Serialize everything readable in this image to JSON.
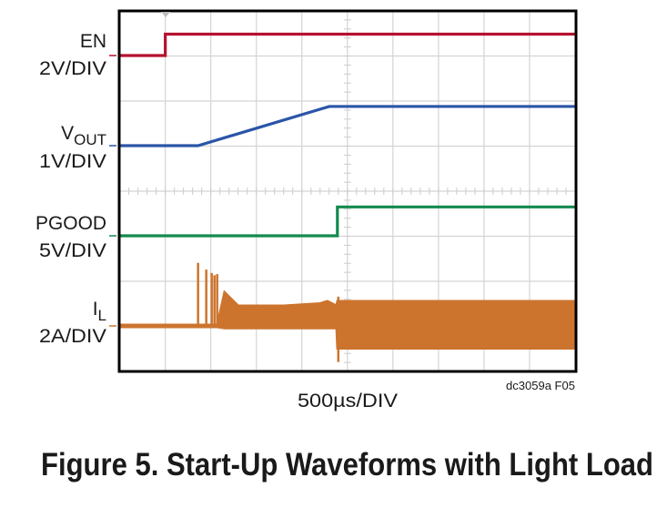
{
  "chart_data": {
    "type": "line",
    "title": "",
    "caption": "Figure 5. Start-Up Waveforms with Light Load",
    "xlabel": "500µs/DIV",
    "figure_id": "dc3059a F05",
    "x_unit": "µs",
    "xlim": [
      0,
      5000
    ],
    "grid": true,
    "grid_divisions": {
      "x": 10,
      "y": 8
    },
    "background": "#ffffff",
    "series": [
      {
        "name": "EN",
        "sub": "",
        "scale_label": "2V/DIV",
        "unit": "V",
        "volts_per_div": 2,
        "color": "#b5122e",
        "x": [
          0,
          500,
          500,
          5000
        ],
        "y": [
          0,
          0,
          0.95,
          0.95
        ]
      },
      {
        "name": "V",
        "sub": "OUT",
        "scale_label": "1V/DIV",
        "unit": "V",
        "volts_per_div": 1,
        "color": "#2a55a8",
        "x": [
          0,
          860,
          2300,
          5000
        ],
        "y": [
          0,
          0,
          0.87,
          0.87
        ]
      },
      {
        "name": "PGOOD",
        "sub": "",
        "scale_label": "5V/DIV",
        "unit": "V",
        "volts_per_div": 5,
        "color": "#138a4e",
        "x": [
          0,
          2390,
          2390,
          5000
        ],
        "y": [
          0,
          0,
          3.2,
          3.2
        ]
      },
      {
        "name": "I",
        "sub": "L",
        "scale_label": "2A/DIV",
        "unit": "A",
        "volts_per_div": 2,
        "color": "#cc742e",
        "envelope": {
          "x": [
            0,
            860,
            1070,
            1150,
            1300,
            1800,
            2200,
            2280,
            2380,
            2390,
            5000
          ],
          "high": [
            0.05,
            0.05,
            0.05,
            1.5,
            0.9,
            0.9,
            1.0,
            1.1,
            0.9,
            1.1,
            1.1
          ],
          "low": [
            -0.05,
            -0.05,
            -0.05,
            -0.1,
            -0.1,
            -0.1,
            -0.1,
            -0.1,
            -0.1,
            -1.0,
            -1.0
          ]
        },
        "spikes": [
          {
            "x": 860,
            "peak": 2.8
          },
          {
            "x": 950,
            "peak": 2.5
          },
          {
            "x": 1010,
            "peak": 2.35
          },
          {
            "x": 1040,
            "peak": 2.25
          },
          {
            "x": 1070,
            "peak": 2.3
          },
          {
            "x": 2400,
            "peak": 1.3,
            "trough": -1.6
          }
        ]
      }
    ]
  }
}
